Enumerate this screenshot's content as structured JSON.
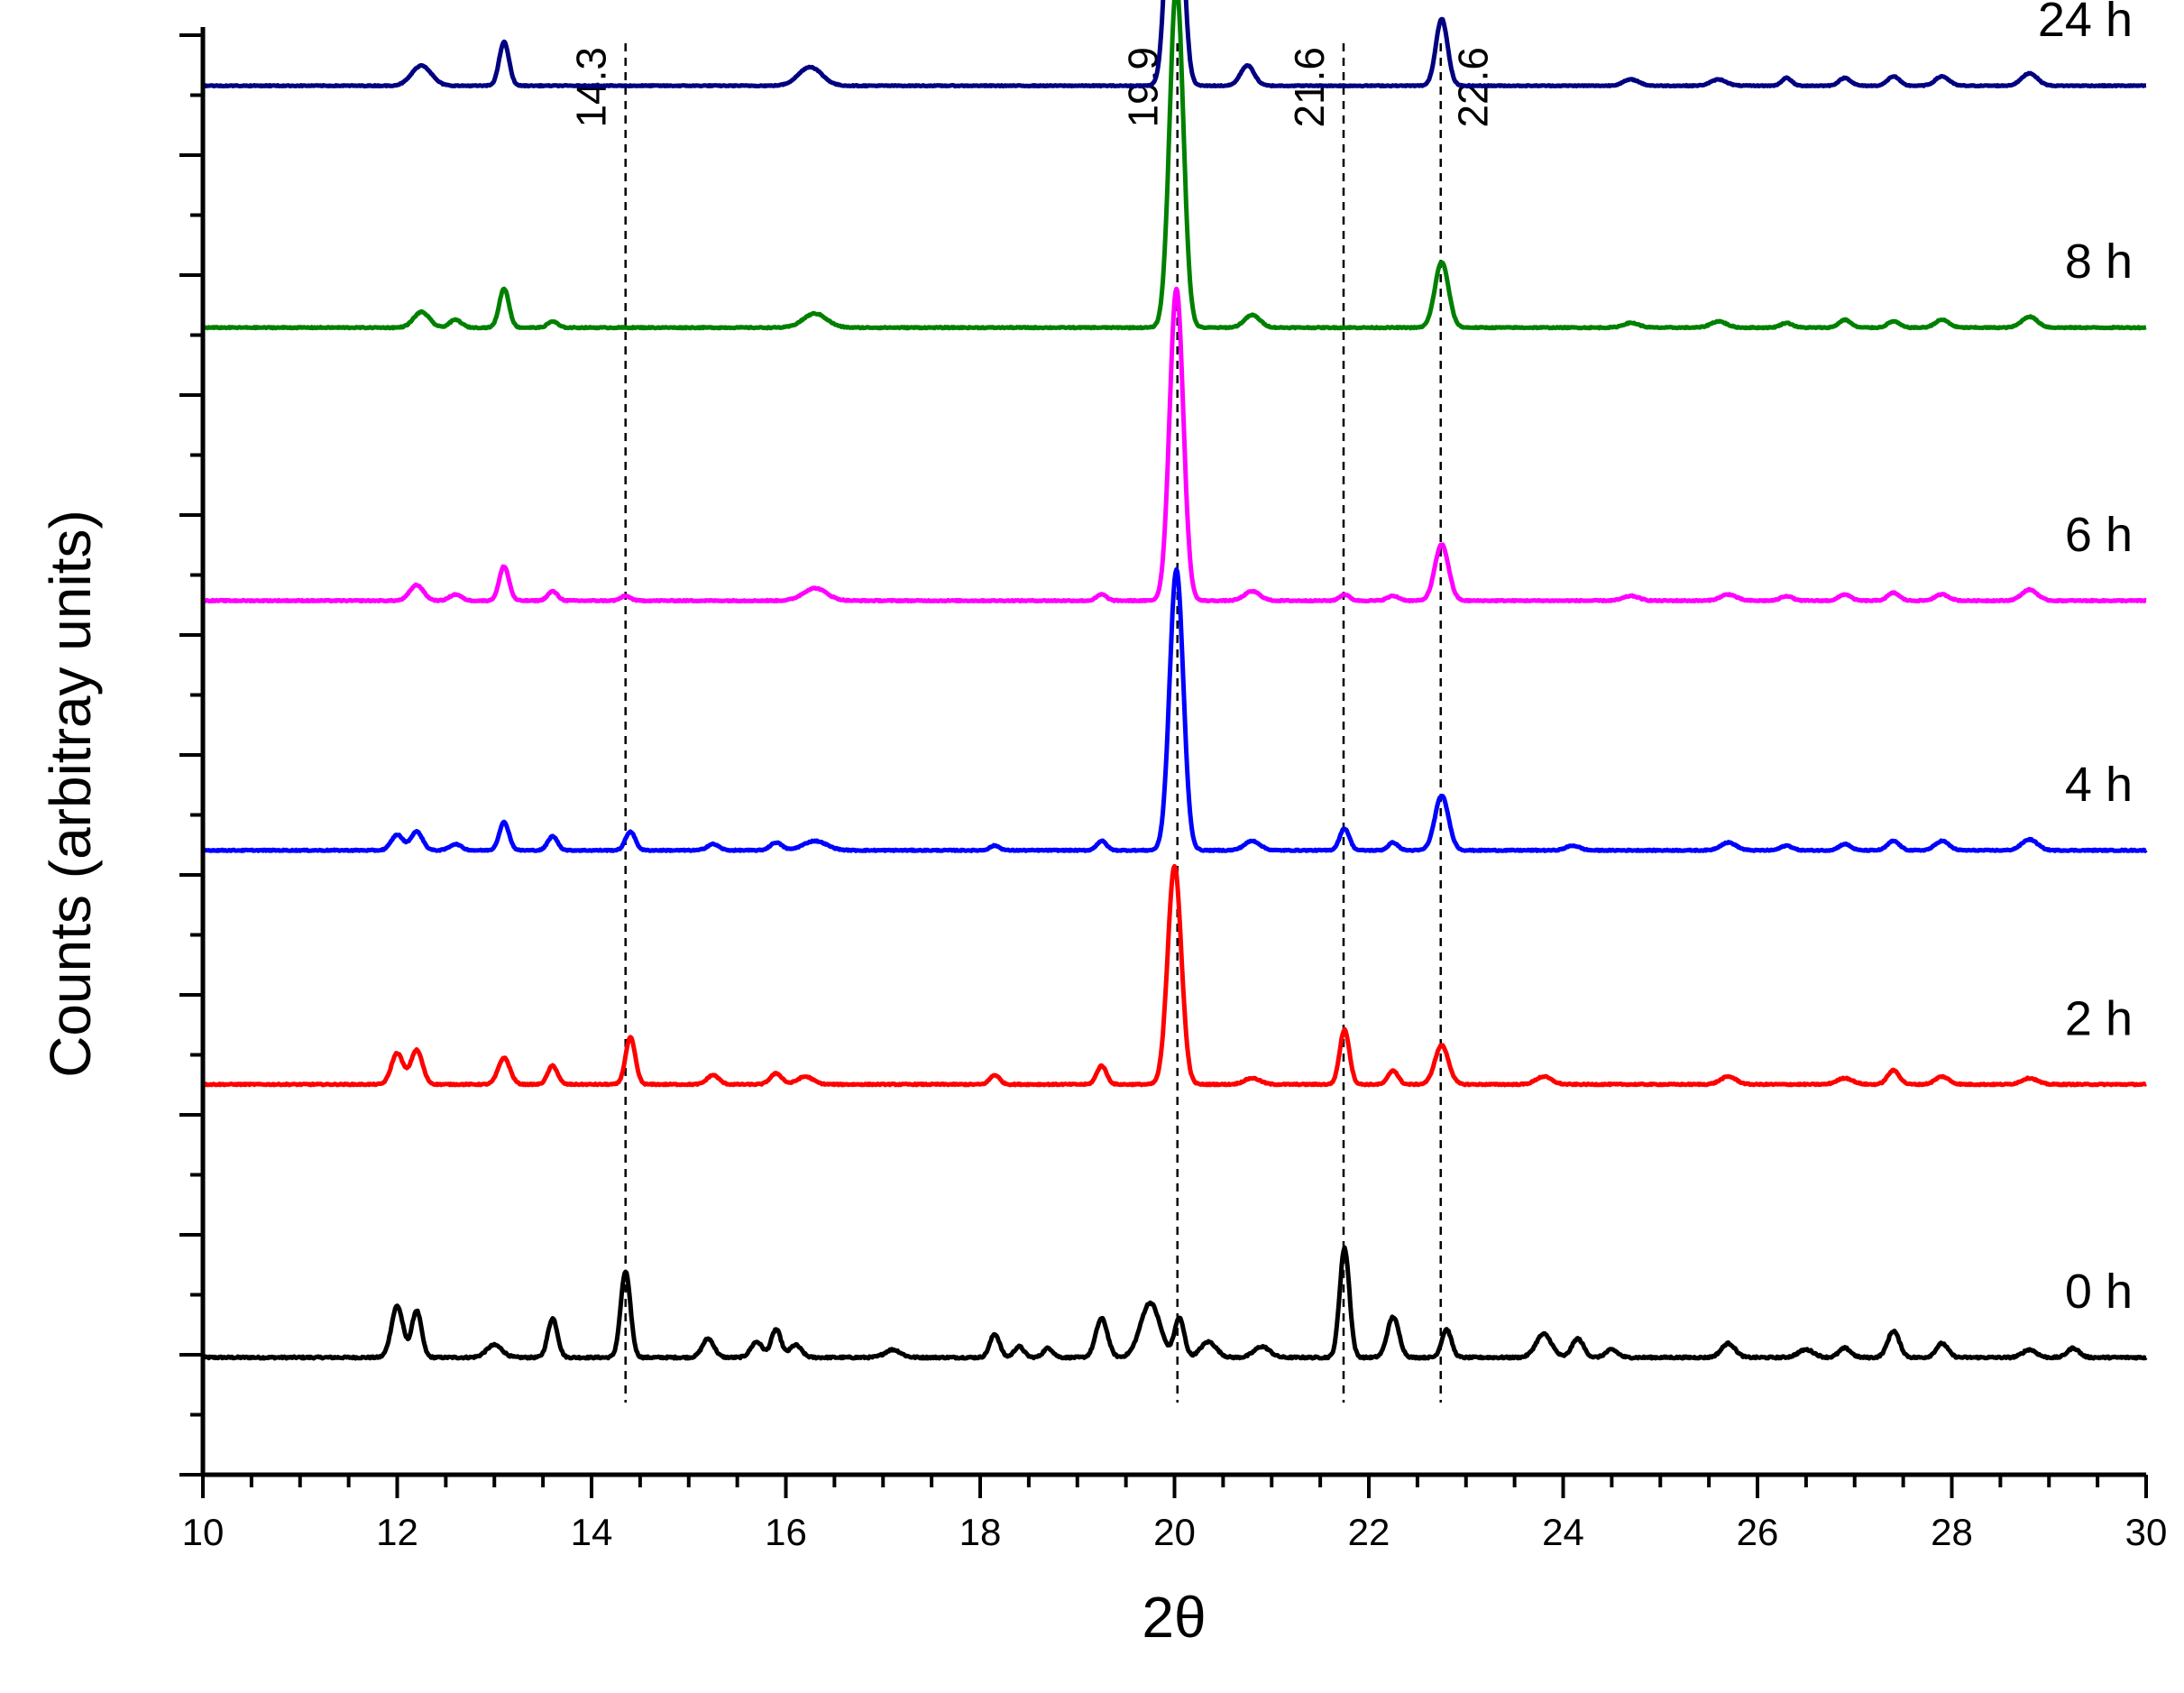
{
  "chart_data": {
    "type": "line",
    "title": "",
    "xlabel": "2θ",
    "ylabel": "Counts (arbitray units)",
    "xlim": [
      10,
      30
    ],
    "x_ticks": [
      10,
      12,
      14,
      16,
      18,
      20,
      22,
      24,
      26,
      28,
      30
    ],
    "y_tick_labels": "none",
    "grid": false,
    "legend": "none; series labels printed at right end of each trace",
    "reference_lines": [
      {
        "x": 14.3,
        "label": "14.3"
      },
      {
        "x": 19.9,
        "label": "19.9"
      },
      {
        "x": 21.6,
        "label": "21.6"
      },
      {
        "x": 22.6,
        "label": "22.6"
      }
    ],
    "series": [
      {
        "name": "0 h",
        "color": "#000000",
        "baseline": 0.0,
        "noise": 0.012,
        "peaks": [
          [
            12.0,
            0.33,
            0.06
          ],
          [
            12.2,
            0.3,
            0.05
          ],
          [
            13.0,
            0.08,
            0.08
          ],
          [
            13.6,
            0.25,
            0.05
          ],
          [
            14.35,
            0.55,
            0.05
          ],
          [
            15.2,
            0.12,
            0.06
          ],
          [
            15.7,
            0.1,
            0.06
          ],
          [
            15.9,
            0.18,
            0.05
          ],
          [
            16.1,
            0.08,
            0.06
          ],
          [
            17.1,
            0.05,
            0.08
          ],
          [
            18.15,
            0.15,
            0.05
          ],
          [
            18.4,
            0.07,
            0.05
          ],
          [
            18.7,
            0.06,
            0.05
          ],
          [
            19.25,
            0.25,
            0.06
          ],
          [
            19.75,
            0.35,
            0.1
          ],
          [
            20.05,
            0.25,
            0.05
          ],
          [
            20.35,
            0.1,
            0.08
          ],
          [
            20.9,
            0.07,
            0.08
          ],
          [
            21.75,
            0.7,
            0.05
          ],
          [
            22.25,
            0.26,
            0.06
          ],
          [
            22.8,
            0.18,
            0.05
          ],
          [
            23.8,
            0.15,
            0.08
          ],
          [
            24.15,
            0.12,
            0.06
          ],
          [
            24.5,
            0.05,
            0.06
          ],
          [
            25.7,
            0.09,
            0.07
          ],
          [
            26.5,
            0.05,
            0.08
          ],
          [
            26.9,
            0.06,
            0.06
          ],
          [
            27.4,
            0.17,
            0.06
          ],
          [
            27.9,
            0.09,
            0.06
          ],
          [
            28.8,
            0.05,
            0.07
          ],
          [
            29.25,
            0.06,
            0.06
          ]
        ]
      },
      {
        "name": "2 h",
        "color": "#ff0000",
        "baseline": 1.75,
        "noise": 0.008,
        "peaks": [
          [
            12.0,
            0.2,
            0.06
          ],
          [
            12.2,
            0.22,
            0.06
          ],
          [
            13.1,
            0.17,
            0.06
          ],
          [
            13.6,
            0.12,
            0.05
          ],
          [
            14.4,
            0.3,
            0.05
          ],
          [
            15.25,
            0.06,
            0.06
          ],
          [
            15.9,
            0.07,
            0.06
          ],
          [
            16.2,
            0.05,
            0.08
          ],
          [
            18.15,
            0.06,
            0.05
          ],
          [
            19.25,
            0.12,
            0.05
          ],
          [
            20.0,
            1.4,
            0.07
          ],
          [
            20.8,
            0.04,
            0.08
          ],
          [
            21.75,
            0.35,
            0.05
          ],
          [
            22.25,
            0.09,
            0.05
          ],
          [
            22.75,
            0.25,
            0.07
          ],
          [
            23.8,
            0.05,
            0.08
          ],
          [
            25.7,
            0.05,
            0.08
          ],
          [
            26.9,
            0.04,
            0.08
          ],
          [
            27.4,
            0.09,
            0.06
          ],
          [
            27.9,
            0.05,
            0.07
          ],
          [
            28.8,
            0.04,
            0.08
          ]
        ]
      },
      {
        "name": "4 h",
        "color": "#0000ff",
        "baseline": 3.25,
        "noise": 0.007,
        "peaks": [
          [
            12.0,
            0.1,
            0.06
          ],
          [
            12.2,
            0.12,
            0.06
          ],
          [
            12.6,
            0.04,
            0.06
          ],
          [
            13.1,
            0.18,
            0.05
          ],
          [
            13.6,
            0.09,
            0.05
          ],
          [
            14.4,
            0.12,
            0.05
          ],
          [
            15.25,
            0.04,
            0.06
          ],
          [
            15.9,
            0.05,
            0.06
          ],
          [
            16.3,
            0.06,
            0.12
          ],
          [
            18.15,
            0.03,
            0.05
          ],
          [
            19.25,
            0.06,
            0.05
          ],
          [
            20.02,
            1.8,
            0.07
          ],
          [
            20.8,
            0.06,
            0.08
          ],
          [
            21.75,
            0.14,
            0.05
          ],
          [
            22.25,
            0.05,
            0.05
          ],
          [
            22.75,
            0.35,
            0.07
          ],
          [
            24.1,
            0.03,
            0.07
          ],
          [
            25.7,
            0.05,
            0.08
          ],
          [
            26.3,
            0.03,
            0.06
          ],
          [
            26.9,
            0.04,
            0.06
          ],
          [
            27.4,
            0.06,
            0.06
          ],
          [
            27.9,
            0.06,
            0.07
          ],
          [
            28.8,
            0.07,
            0.08
          ]
        ]
      },
      {
        "name": "6 h",
        "color": "#ff00ff",
        "baseline": 4.85,
        "noise": 0.007,
        "peaks": [
          [
            12.2,
            0.1,
            0.07
          ],
          [
            12.6,
            0.04,
            0.06
          ],
          [
            13.1,
            0.22,
            0.05
          ],
          [
            13.6,
            0.06,
            0.05
          ],
          [
            14.35,
            0.03,
            0.05
          ],
          [
            16.3,
            0.08,
            0.12
          ],
          [
            19.25,
            0.04,
            0.05
          ],
          [
            20.02,
            2.0,
            0.07
          ],
          [
            20.8,
            0.06,
            0.08
          ],
          [
            21.75,
            0.04,
            0.05
          ],
          [
            22.25,
            0.03,
            0.06
          ],
          [
            22.75,
            0.36,
            0.07
          ],
          [
            24.7,
            0.03,
            0.08
          ],
          [
            25.7,
            0.04,
            0.08
          ],
          [
            26.3,
            0.03,
            0.06
          ],
          [
            26.9,
            0.04,
            0.06
          ],
          [
            27.4,
            0.05,
            0.06
          ],
          [
            27.9,
            0.04,
            0.07
          ],
          [
            28.8,
            0.07,
            0.08
          ]
        ]
      },
      {
        "name": "8 h",
        "color": "#008000",
        "baseline": 6.6,
        "noise": 0.007,
        "peaks": [
          [
            12.25,
            0.1,
            0.08
          ],
          [
            12.6,
            0.05,
            0.06
          ],
          [
            13.1,
            0.25,
            0.05
          ],
          [
            13.6,
            0.04,
            0.05
          ],
          [
            16.3,
            0.09,
            0.12
          ],
          [
            20.02,
            2.2,
            0.07
          ],
          [
            20.8,
            0.08,
            0.08
          ],
          [
            22.75,
            0.42,
            0.07
          ],
          [
            24.7,
            0.03,
            0.08
          ],
          [
            25.6,
            0.04,
            0.08
          ],
          [
            26.3,
            0.03,
            0.06
          ],
          [
            26.9,
            0.05,
            0.06
          ],
          [
            27.4,
            0.04,
            0.06
          ],
          [
            27.9,
            0.05,
            0.07
          ],
          [
            28.8,
            0.07,
            0.08
          ]
        ]
      },
      {
        "name": "24 h",
        "color": "#000080",
        "baseline": 8.15,
        "noise": 0.006,
        "peaks": [
          [
            12.25,
            0.13,
            0.1
          ],
          [
            13.1,
            0.28,
            0.05
          ],
          [
            16.25,
            0.12,
            0.12
          ],
          [
            20.0,
            2.3,
            0.07
          ],
          [
            20.75,
            0.13,
            0.07
          ],
          [
            22.75,
            0.43,
            0.06
          ],
          [
            24.7,
            0.04,
            0.08
          ],
          [
            25.6,
            0.04,
            0.08
          ],
          [
            26.3,
            0.05,
            0.05
          ],
          [
            26.9,
            0.05,
            0.06
          ],
          [
            27.4,
            0.06,
            0.06
          ],
          [
            27.9,
            0.06,
            0.07
          ],
          [
            28.8,
            0.08,
            0.08
          ]
        ]
      }
    ]
  }
}
